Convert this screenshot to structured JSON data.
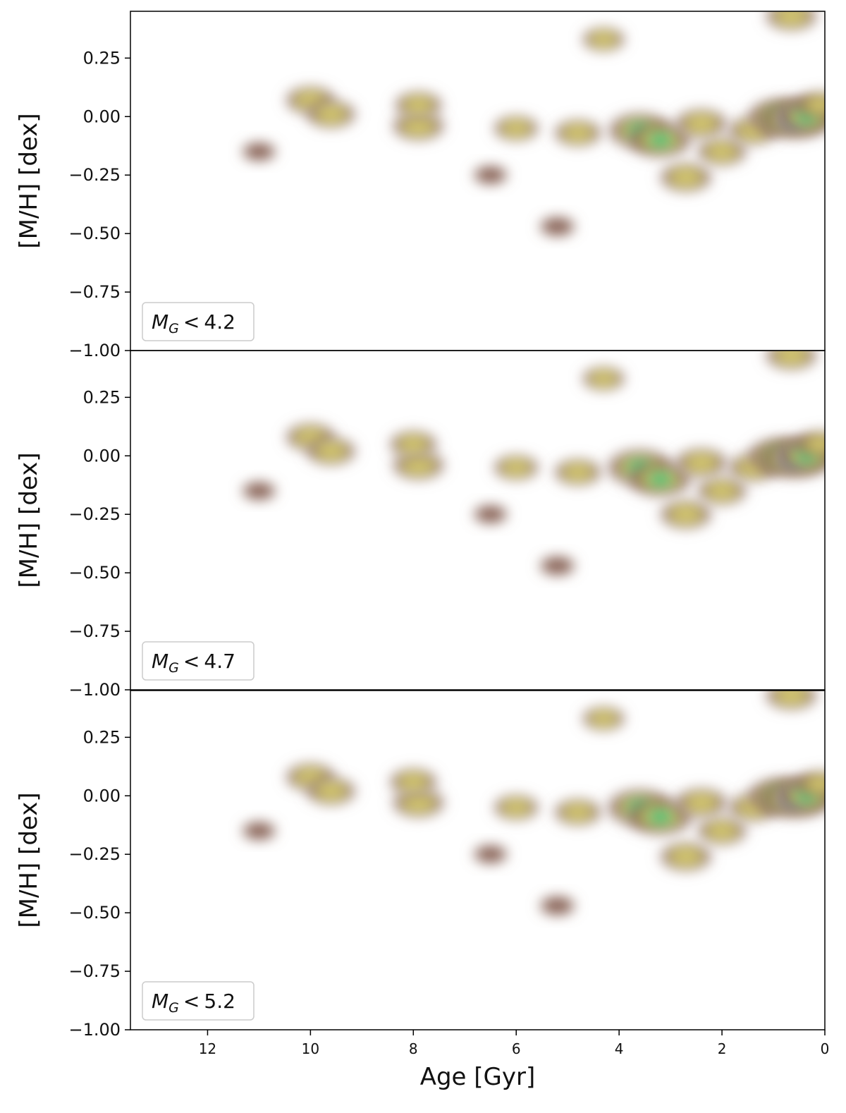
{
  "chart_data": [
    {
      "type": "heatmap",
      "legend_text": "M_G < 4.2",
      "legend": {
        "prefix": "M",
        "subscript": "G",
        "relation": "<",
        "value": "4.2"
      },
      "legend_placement": "bottom-left",
      "xlabel": "",
      "ylabel": "[M/H] [dex]",
      "xlim": [
        13.5,
        0
      ],
      "ylim": [
        -1.0,
        0.45
      ],
      "xticks": [],
      "yticks": [
        -1.0,
        -0.75,
        -0.5,
        -0.25,
        0.0,
        0.25
      ],
      "ytick_labels": [
        "−1.00",
        "−0.75",
        "−0.50",
        "−0.25",
        "0.00",
        "0.25"
      ],
      "colormap": "terrain_r",
      "density_peaks": [
        {
          "age": 10.0,
          "mh": 0.07,
          "level": 0.45
        },
        {
          "age": 9.6,
          "mh": 0.01,
          "level": 0.45
        },
        {
          "age": 7.9,
          "mh": -0.04,
          "level": 0.5
        },
        {
          "age": 7.9,
          "mh": 0.05,
          "level": 0.4
        },
        {
          "age": 6.0,
          "mh": -0.05,
          "level": 0.35
        },
        {
          "age": 4.8,
          "mh": -0.07,
          "level": 0.4
        },
        {
          "age": 4.3,
          "mh": 0.33,
          "level": 0.3
        },
        {
          "age": 3.6,
          "mh": -0.06,
          "level": 0.75
        },
        {
          "age": 3.2,
          "mh": -0.1,
          "level": 0.75
        },
        {
          "age": 2.7,
          "mh": -0.26,
          "level": 0.5
        },
        {
          "age": 2.4,
          "mh": -0.03,
          "level": 0.5
        },
        {
          "age": 2.0,
          "mh": -0.15,
          "level": 0.45
        },
        {
          "age": 1.4,
          "mh": -0.06,
          "level": 0.45
        },
        {
          "age": 0.9,
          "mh": 0.0,
          "level": 0.7
        },
        {
          "age": 0.6,
          "mh": -0.01,
          "level": 0.9
        },
        {
          "age": 0.35,
          "mh": 0.0,
          "level": 0.7
        },
        {
          "age": 0.1,
          "mh": 0.05,
          "level": 0.4
        },
        {
          "age": 0.65,
          "mh": 0.43,
          "level": 0.5
        },
        {
          "age": 11.0,
          "mh": -0.15,
          "level": 0.12
        },
        {
          "age": 5.2,
          "mh": -0.47,
          "level": 0.15
        },
        {
          "age": 6.5,
          "mh": -0.25,
          "level": 0.12
        }
      ]
    },
    {
      "type": "heatmap",
      "legend_text": "M_G < 4.7",
      "legend": {
        "prefix": "M",
        "subscript": "G",
        "relation": "<",
        "value": "4.7"
      },
      "legend_placement": "bottom-left",
      "xlabel": "",
      "ylabel": "[M/H] [dex]",
      "xlim": [
        13.5,
        0
      ],
      "ylim": [
        -1.0,
        0.45
      ],
      "xticks": [],
      "yticks": [
        -1.0,
        -0.75,
        -0.5,
        -0.25,
        0.0,
        0.25
      ],
      "ytick_labels": [
        "−1.00",
        "−0.75",
        "−0.50",
        "−0.25",
        "0.00",
        "0.25"
      ],
      "colormap": "terrain_r",
      "density_peaks": [
        {
          "age": 10.0,
          "mh": 0.08,
          "level": 0.45
        },
        {
          "age": 9.6,
          "mh": 0.02,
          "level": 0.45
        },
        {
          "age": 7.9,
          "mh": -0.04,
          "level": 0.5
        },
        {
          "age": 8.0,
          "mh": 0.05,
          "level": 0.4
        },
        {
          "age": 6.0,
          "mh": -0.05,
          "level": 0.35
        },
        {
          "age": 4.8,
          "mh": -0.07,
          "level": 0.4
        },
        {
          "age": 4.3,
          "mh": 0.33,
          "level": 0.3
        },
        {
          "age": 3.6,
          "mh": -0.05,
          "level": 0.8
        },
        {
          "age": 3.2,
          "mh": -0.1,
          "level": 0.75
        },
        {
          "age": 2.7,
          "mh": -0.25,
          "level": 0.5
        },
        {
          "age": 2.4,
          "mh": -0.03,
          "level": 0.5
        },
        {
          "age": 2.0,
          "mh": -0.15,
          "level": 0.45
        },
        {
          "age": 1.4,
          "mh": -0.05,
          "level": 0.45
        },
        {
          "age": 0.9,
          "mh": 0.0,
          "level": 0.7
        },
        {
          "age": 0.6,
          "mh": -0.01,
          "level": 0.9
        },
        {
          "age": 0.35,
          "mh": 0.0,
          "level": 0.7
        },
        {
          "age": 0.1,
          "mh": 0.05,
          "level": 0.4
        },
        {
          "age": 0.65,
          "mh": 0.43,
          "level": 0.5
        },
        {
          "age": 11.0,
          "mh": -0.15,
          "level": 0.12
        },
        {
          "age": 5.2,
          "mh": -0.47,
          "level": 0.15
        },
        {
          "age": 6.5,
          "mh": -0.25,
          "level": 0.12
        }
      ]
    },
    {
      "type": "heatmap",
      "legend_text": "M_G < 5.2",
      "legend": {
        "prefix": "M",
        "subscript": "G",
        "relation": "<",
        "value": "5.2"
      },
      "legend_placement": "bottom-left",
      "xlabel": "Age [Gyr]",
      "ylabel": "[M/H] [dex]",
      "xlim": [
        13.5,
        0
      ],
      "ylim": [
        -1.0,
        0.45
      ],
      "xticks": [
        12,
        10,
        8,
        6,
        4,
        2,
        0
      ],
      "xtick_labels": [
        "12",
        "10",
        "8",
        "6",
        "4",
        "2",
        "0"
      ],
      "yticks": [
        -1.0,
        -0.75,
        -0.5,
        -0.25,
        0.0,
        0.25
      ],
      "ytick_labels": [
        "−1.00",
        "−0.75",
        "−0.50",
        "−0.25",
        "0.00",
        "0.25"
      ],
      "colormap": "terrain_r",
      "density_peaks": [
        {
          "age": 10.0,
          "mh": 0.08,
          "level": 0.45
        },
        {
          "age": 9.6,
          "mh": 0.02,
          "level": 0.45
        },
        {
          "age": 7.9,
          "mh": -0.03,
          "level": 0.5
        },
        {
          "age": 8.0,
          "mh": 0.06,
          "level": 0.4
        },
        {
          "age": 6.0,
          "mh": -0.05,
          "level": 0.35
        },
        {
          "age": 4.8,
          "mh": -0.07,
          "level": 0.4
        },
        {
          "age": 4.3,
          "mh": 0.33,
          "level": 0.3
        },
        {
          "age": 3.6,
          "mh": -0.05,
          "level": 0.8
        },
        {
          "age": 3.2,
          "mh": -0.09,
          "level": 0.8
        },
        {
          "age": 2.7,
          "mh": -0.26,
          "level": 0.5
        },
        {
          "age": 2.4,
          "mh": -0.03,
          "level": 0.5
        },
        {
          "age": 2.0,
          "mh": -0.15,
          "level": 0.45
        },
        {
          "age": 1.4,
          "mh": -0.05,
          "level": 0.45
        },
        {
          "age": 0.9,
          "mh": 0.0,
          "level": 0.7
        },
        {
          "age": 0.6,
          "mh": -0.01,
          "level": 0.9
        },
        {
          "age": 0.35,
          "mh": 0.0,
          "level": 0.7
        },
        {
          "age": 0.1,
          "mh": 0.05,
          "level": 0.4
        },
        {
          "age": 0.65,
          "mh": 0.43,
          "level": 0.5
        },
        {
          "age": 11.0,
          "mh": -0.15,
          "level": 0.12
        },
        {
          "age": 5.2,
          "mh": -0.47,
          "level": 0.15
        },
        {
          "age": 6.5,
          "mh": -0.25,
          "level": 0.12
        }
      ]
    }
  ]
}
